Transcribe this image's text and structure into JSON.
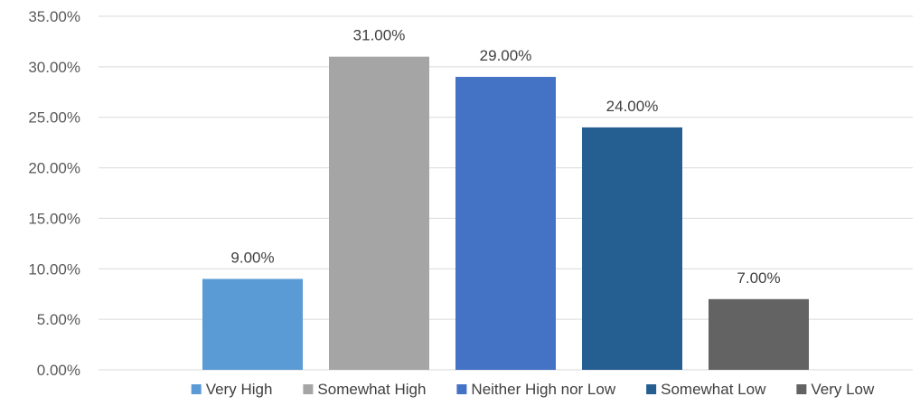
{
  "chart_data": {
    "type": "bar",
    "title": "",
    "xlabel": "",
    "ylabel": "",
    "ylim": [
      0,
      35
    ],
    "ytick_step": 5,
    "ytick_labels": [
      "0.00%",
      "5.00%",
      "10.00%",
      "15.00%",
      "20.00%",
      "25.00%",
      "30.00%",
      "35.00%"
    ],
    "grid": true,
    "legend_position": "bottom",
    "series": [
      {
        "name": "Very High",
        "value": 9,
        "label": "9.00%",
        "color": "#5b9bd5"
      },
      {
        "name": "Somewhat High",
        "value": 31,
        "label": "31.00%",
        "color": "#a5a5a5"
      },
      {
        "name": "Neither High nor Low",
        "value": 29,
        "label": "29.00%",
        "color": "#4472c4"
      },
      {
        "name": "Somewhat Low",
        "value": 24,
        "label": "24.00%",
        "color": "#255e91"
      },
      {
        "name": "Very Low",
        "value": 7,
        "label": "7.00%",
        "color": "#636363"
      }
    ]
  }
}
